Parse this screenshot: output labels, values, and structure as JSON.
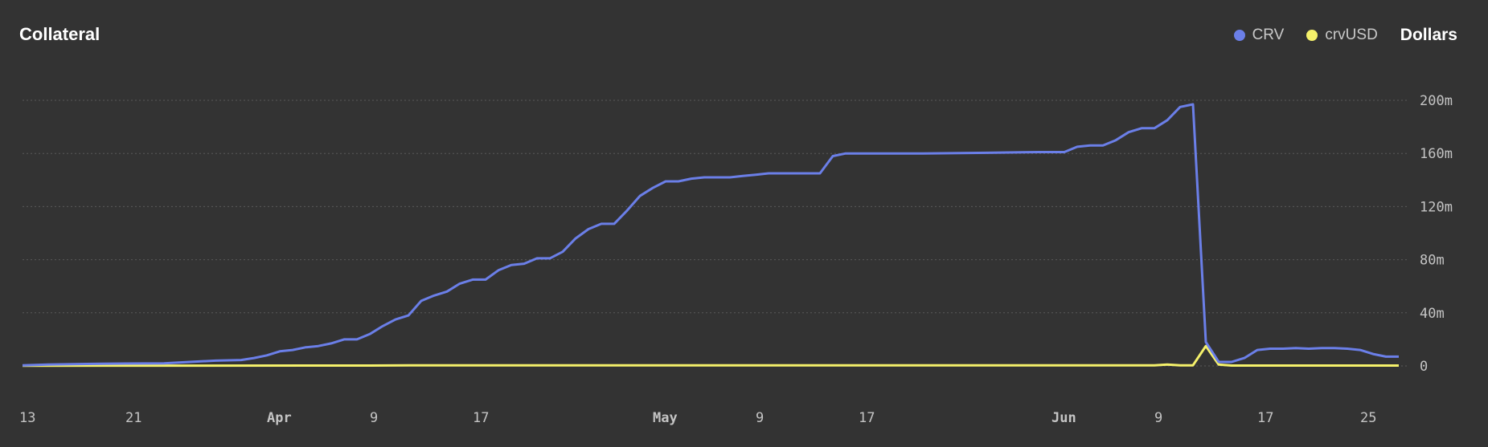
{
  "header": {
    "title": "Collateral",
    "unit_toggle": "Dollars"
  },
  "legend": [
    {
      "name": "CRV",
      "color": "#6b7fe8",
      "icon": "circle-icon"
    },
    {
      "name": "crvUSD",
      "color": "#f5f16b",
      "icon": "circle-icon"
    }
  ],
  "chart_data": {
    "type": "line",
    "title": "Collateral",
    "ylim": [
      0,
      200
    ],
    "y_ticks": [
      {
        "value": 200,
        "label": "200m"
      },
      {
        "value": 160,
        "label": "160m"
      },
      {
        "value": 120,
        "label": "120m"
      },
      {
        "value": 80,
        "label": "80m"
      },
      {
        "value": 40,
        "label": "40m"
      },
      {
        "value": 0,
        "label": "0"
      }
    ],
    "x_ticks": [
      {
        "label": "13",
        "date": "2024-03-13",
        "bold": false
      },
      {
        "label": "21",
        "date": "2024-03-21",
        "bold": false
      },
      {
        "label": "Apr",
        "date": "2024-04-01",
        "bold": true
      },
      {
        "label": "9",
        "date": "2024-04-09",
        "bold": false
      },
      {
        "label": "17",
        "date": "2024-04-17",
        "bold": false
      },
      {
        "label": "May",
        "date": "2024-05-01",
        "bold": true
      },
      {
        "label": "9",
        "date": "2024-05-09",
        "bold": false
      },
      {
        "label": "17",
        "date": "2024-05-17",
        "bold": false
      },
      {
        "label": "Jun",
        "date": "2024-06-01",
        "bold": true
      },
      {
        "label": "9",
        "date": "2024-06-09",
        "bold": false
      },
      {
        "label": "17",
        "date": "2024-06-17",
        "bold": false
      },
      {
        "label": "25",
        "date": "2024-06-25",
        "bold": false
      }
    ],
    "x_range": [
      "2024-03-13",
      "2024-06-28"
    ],
    "grid": true,
    "legend_position": "top-right",
    "series": [
      {
        "name": "CRV",
        "color": "#6b7fe8",
        "points": [
          [
            "2024-03-13",
            0.5
          ],
          [
            "2024-03-15",
            1
          ],
          [
            "2024-03-18",
            1.5
          ],
          [
            "2024-03-21",
            1.8
          ],
          [
            "2024-03-24",
            2
          ],
          [
            "2024-03-26",
            3
          ],
          [
            "2024-03-28",
            4
          ],
          [
            "2024-03-30",
            4.5
          ],
          [
            "2024-03-31",
            6
          ],
          [
            "2024-04-01",
            8
          ],
          [
            "2024-04-02",
            11
          ],
          [
            "2024-04-03",
            12
          ],
          [
            "2024-04-04",
            14
          ],
          [
            "2024-04-05",
            15
          ],
          [
            "2024-04-06",
            17
          ],
          [
            "2024-04-07",
            20
          ],
          [
            "2024-04-08",
            20
          ],
          [
            "2024-04-09",
            24
          ],
          [
            "2024-04-10",
            30
          ],
          [
            "2024-04-11",
            35
          ],
          [
            "2024-04-12",
            38
          ],
          [
            "2024-04-13",
            49
          ],
          [
            "2024-04-14",
            53
          ],
          [
            "2024-04-15",
            56
          ],
          [
            "2024-04-16",
            62
          ],
          [
            "2024-04-17",
            65
          ],
          [
            "2024-04-18",
            65
          ],
          [
            "2024-04-19",
            72
          ],
          [
            "2024-04-20",
            76
          ],
          [
            "2024-04-21",
            77
          ],
          [
            "2024-04-22",
            81
          ],
          [
            "2024-04-23",
            81
          ],
          [
            "2024-04-24",
            86
          ],
          [
            "2024-04-25",
            96
          ],
          [
            "2024-04-26",
            103
          ],
          [
            "2024-04-27",
            107
          ],
          [
            "2024-04-28",
            107
          ],
          [
            "2024-04-29",
            117
          ],
          [
            "2024-04-30",
            128
          ],
          [
            "2024-05-01",
            134
          ],
          [
            "2024-05-02",
            139
          ],
          [
            "2024-05-03",
            139
          ],
          [
            "2024-05-04",
            141
          ],
          [
            "2024-05-05",
            142
          ],
          [
            "2024-05-06",
            142
          ],
          [
            "2024-05-07",
            142
          ],
          [
            "2024-05-08",
            143
          ],
          [
            "2024-05-09",
            144
          ],
          [
            "2024-05-10",
            145
          ],
          [
            "2024-05-11",
            145
          ],
          [
            "2024-05-13",
            145
          ],
          [
            "2024-05-14",
            145
          ],
          [
            "2024-05-15",
            158
          ],
          [
            "2024-05-16",
            160
          ],
          [
            "2024-05-18",
            160
          ],
          [
            "2024-05-22",
            160
          ],
          [
            "2024-05-27",
            160.5
          ],
          [
            "2024-05-31",
            161
          ],
          [
            "2024-06-02",
            161
          ],
          [
            "2024-06-03",
            165
          ],
          [
            "2024-06-04",
            166
          ],
          [
            "2024-06-05",
            166
          ],
          [
            "2024-06-06",
            170
          ],
          [
            "2024-06-07",
            176
          ],
          [
            "2024-06-08",
            179
          ],
          [
            "2024-06-09",
            179
          ],
          [
            "2024-06-10",
            185
          ],
          [
            "2024-06-11",
            195
          ],
          [
            "2024-06-12",
            197
          ],
          [
            "2024-06-13",
            18
          ],
          [
            "2024-06-14",
            3
          ],
          [
            "2024-06-15",
            3
          ],
          [
            "2024-06-16",
            6
          ],
          [
            "2024-06-17",
            12
          ],
          [
            "2024-06-18",
            13
          ],
          [
            "2024-06-19",
            13
          ],
          [
            "2024-06-20",
            13.5
          ],
          [
            "2024-06-21",
            13
          ],
          [
            "2024-06-22",
            13.5
          ],
          [
            "2024-06-23",
            13.5
          ],
          [
            "2024-06-24",
            13
          ],
          [
            "2024-06-25",
            12
          ],
          [
            "2024-06-26",
            9
          ],
          [
            "2024-06-27",
            7
          ],
          [
            "2024-06-28",
            7
          ]
        ]
      },
      {
        "name": "crvUSD",
        "color": "#f5f16b",
        "points": [
          [
            "2024-03-13",
            0.2
          ],
          [
            "2024-04-09",
            0.3
          ],
          [
            "2024-04-13",
            0.5
          ],
          [
            "2024-06-09",
            0.5
          ],
          [
            "2024-06-10",
            1
          ],
          [
            "2024-06-11",
            0.5
          ],
          [
            "2024-06-12",
            0.5
          ],
          [
            "2024-06-13",
            15
          ],
          [
            "2024-06-14",
            1
          ],
          [
            "2024-06-15",
            0.3
          ],
          [
            "2024-06-28",
            0.3
          ]
        ]
      }
    ]
  }
}
